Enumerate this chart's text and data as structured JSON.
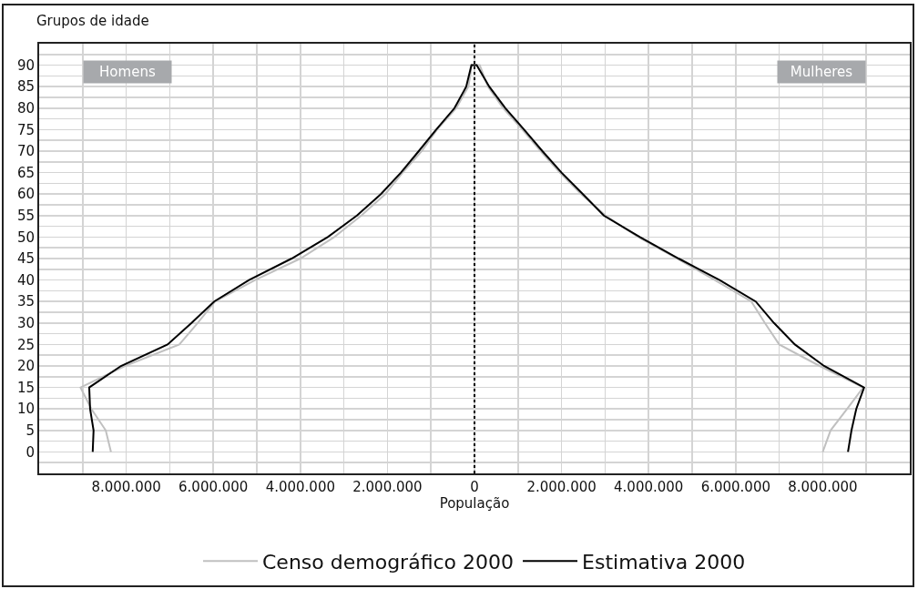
{
  "chart_data": {
    "type": "line",
    "orientation": "horizontal",
    "xlabel": "População",
    "ylabel": "Grupos de idade",
    "annotations": [
      "Homens",
      "Mulheres"
    ],
    "xlim": [
      -10000000,
      10000000
    ],
    "xticks": [
      {
        "value": -9000000,
        "label": null
      },
      {
        "value": -8000000,
        "label": "8.000.000"
      },
      {
        "value": -7000000,
        "label": null
      },
      {
        "value": -6000000,
        "label": "6.000.000"
      },
      {
        "value": -5000000,
        "label": null
      },
      {
        "value": -4000000,
        "label": "4.000.000"
      },
      {
        "value": -3000000,
        "label": null
      },
      {
        "value": -2000000,
        "label": "2.000.000"
      },
      {
        "value": -1000000,
        "label": null
      },
      0,
      {
        "value": 1000000,
        "label": null
      },
      {
        "value": 2000000,
        "label": "2.000.000"
      },
      {
        "value": 3000000,
        "label": null
      },
      {
        "value": 4000000,
        "label": "4.000.000"
      },
      {
        "value": 5000000,
        "label": null
      },
      {
        "value": 6000000,
        "label": "6.000.000"
      },
      {
        "value": 7000000,
        "label": null
      },
      {
        "value": 8000000,
        "label": "8.000.000"
      },
      {
        "value": 9000000,
        "label": null
      }
    ],
    "ylim": [
      -5,
      95
    ],
    "yticks": [
      {
        "value": -2.5,
        "label": null
      },
      0,
      {
        "value": 2.5,
        "label": null
      },
      5,
      {
        "value": 7.5,
        "label": null
      },
      10,
      {
        "value": 12.5,
        "label": null
      },
      15,
      {
        "value": 17.5,
        "label": null
      },
      20,
      {
        "value": 22.5,
        "label": null
      },
      25,
      {
        "value": 27.5,
        "label": null
      },
      30,
      {
        "value": 32.5,
        "label": null
      },
      35,
      {
        "value": 37.5,
        "label": null
      },
      40,
      {
        "value": 42.5,
        "label": null
      },
      45,
      {
        "value": 47.5,
        "label": null
      },
      50,
      {
        "value": 52.5,
        "label": null
      },
      55,
      {
        "value": 57.5,
        "label": null
      },
      60,
      {
        "value": 62.5,
        "label": null
      },
      65,
      {
        "value": 67.5,
        "label": null
      },
      70,
      {
        "value": 72.5,
        "label": null
      },
      75,
      {
        "value": 77.5,
        "label": null
      },
      80,
      {
        "value": 82.5,
        "label": null
      },
      85,
      {
        "value": 87.5,
        "label": null
      },
      90,
      {
        "value": 92.5,
        "label": null
      }
    ],
    "series": [
      {
        "name": "Censo demográfico 2000",
        "color": "#c0c0c0",
        "x": [
          0,
          5,
          10,
          15,
          20,
          25,
          30,
          35,
          40,
          45,
          50,
          55,
          60,
          65,
          70,
          75,
          80,
          85,
          90,
          90,
          85,
          80,
          75,
          70,
          65,
          60,
          55,
          50,
          45,
          40,
          35,
          30,
          25,
          20,
          15,
          10,
          5,
          0
        ],
        "values": [
          -8350000,
          -8470000,
          -8800000,
          -9050000,
          -8030000,
          -6780000,
          -6360000,
          -5960000,
          -5040000,
          -4000000,
          -3220000,
          -2600000,
          -2050000,
          -1650000,
          -1210000,
          -860000,
          -420000,
          -140000,
          -60000,
          120000,
          310000,
          660000,
          1100000,
          1520000,
          1960000,
          2450000,
          3010000,
          3760000,
          4650000,
          5520000,
          6360000,
          6670000,
          7000000,
          7930000,
          8930000,
          8560000,
          8180000,
          8000000
        ]
      },
      {
        "name": "Estimativa 2000",
        "color": "#000000",
        "x": [
          0,
          5,
          10,
          15,
          20,
          25,
          30,
          35,
          40,
          45,
          50,
          55,
          60,
          65,
          70,
          75,
          80,
          85,
          90,
          90,
          85,
          80,
          75,
          70,
          65,
          60,
          55,
          50,
          45,
          40,
          35,
          30,
          25,
          20,
          15,
          10,
          5,
          0
        ],
        "values": [
          -8770000,
          -8750000,
          -8830000,
          -8850000,
          -8120000,
          -7050000,
          -6500000,
          -5980000,
          -5180000,
          -4200000,
          -3370000,
          -2700000,
          -2150000,
          -1690000,
          -1280000,
          -880000,
          -460000,
          -190000,
          -70000,
          50000,
          340000,
          710000,
          1140000,
          1560000,
          2000000,
          2490000,
          2970000,
          3800000,
          4690000,
          5630000,
          6460000,
          6880000,
          7360000,
          8030000,
          8950000,
          8770000,
          8660000,
          8580000
        ]
      }
    ],
    "ref_lines": [
      {
        "axis": "x",
        "value": 0,
        "color": "#000000",
        "line_style": "dotted"
      }
    ],
    "grid": true,
    "legend": "bottom",
    "marker": "none",
    "line_style": "solid"
  }
}
